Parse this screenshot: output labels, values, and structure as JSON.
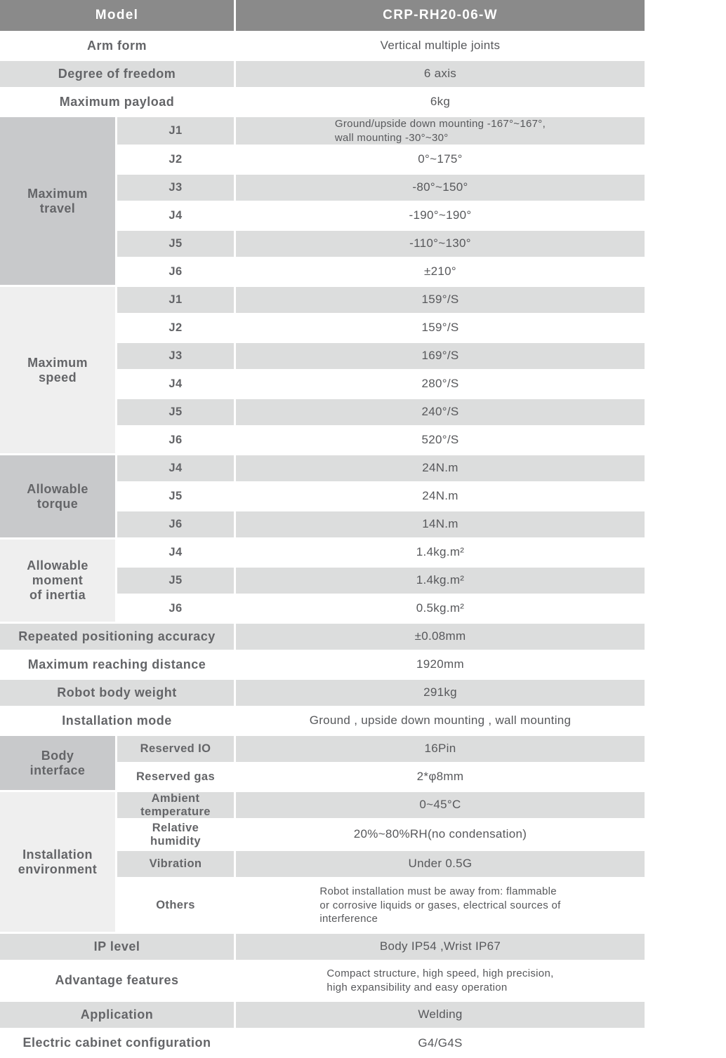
{
  "colors": {
    "header-bg": "#8a8a8a",
    "row-shaded": "#dcdddd",
    "group-dark": "#c8c9cb",
    "group-light": "#efefef",
    "text-label": "#646568",
    "text-value": "#57585b",
    "header-text": "#ffffff"
  },
  "table": {
    "header": {
      "label": "Model",
      "value": "CRP-RH20-06-W"
    },
    "top_rows": [
      {
        "label": "Arm form",
        "value": "Vertical multiple joints"
      },
      {
        "label": "Degree of freedom",
        "value": "6 axis"
      },
      {
        "label": "Maximum payload",
        "value": "6kg"
      }
    ],
    "groups": [
      {
        "title": "Maximum\ntravel",
        "rows": [
          {
            "label": "J1",
            "value": "Ground/upside down mounting -167°~167°,\nwall mounting -30°~30°"
          },
          {
            "label": "J2",
            "value": "0°~175°"
          },
          {
            "label": "J3",
            "value": "-80°~150°"
          },
          {
            "label": "J4",
            "value": "-190°~190°"
          },
          {
            "label": "J5",
            "value": "-110°~130°"
          },
          {
            "label": "J6",
            "value": "±210°"
          }
        ]
      },
      {
        "title": "Maximum\nspeed",
        "rows": [
          {
            "label": "J1",
            "value": "159°/S"
          },
          {
            "label": "J2",
            "value": "159°/S"
          },
          {
            "label": "J3",
            "value": "169°/S"
          },
          {
            "label": "J4",
            "value": "280°/S"
          },
          {
            "label": "J5",
            "value": "240°/S"
          },
          {
            "label": "J6",
            "value": "520°/S"
          }
        ]
      },
      {
        "title": "Allowable\ntorque",
        "rows": [
          {
            "label": "J4",
            "value": "24N.m"
          },
          {
            "label": "J5",
            "value": "24N.m"
          },
          {
            "label": "J6",
            "value": "14N.m"
          }
        ]
      },
      {
        "title": "Allowable\nmoment\nof inertia",
        "rows": [
          {
            "label": "J4",
            "value": "1.4kg.m²"
          },
          {
            "label": "J5",
            "value": "1.4kg.m²"
          },
          {
            "label": "J6",
            "value": "0.5kg.m²"
          }
        ]
      }
    ],
    "mid_rows": [
      {
        "label": "Repeated positioning accuracy",
        "value": "±0.08mm"
      },
      {
        "label": "Maximum reaching distance",
        "value": "1920mm"
      },
      {
        "label": "Robot body weight",
        "value": "291kg"
      },
      {
        "label": "Installation mode",
        "value": "Ground ,  upside down mounting ,  wall mounting"
      }
    ],
    "groups2": [
      {
        "title": "Body\ninterface",
        "rows": [
          {
            "label": "Reserved IO",
            "value": "16Pin"
          },
          {
            "label": "Reserved gas",
            "value": "2*φ8mm"
          }
        ]
      },
      {
        "title": "Installation\nenvironment",
        "rows": [
          {
            "label": "Ambient\ntemperature",
            "value": "0~45°C"
          },
          {
            "label": "Relative\nhumidity",
            "value": "20%~80%RH(no condensation)"
          },
          {
            "label": "Vibration",
            "value": "Under 0.5G"
          },
          {
            "label": "Others",
            "value": "Robot installation must be away from: flammable\nor corrosive liquids or gases, electrical sources of\ninterference"
          }
        ]
      }
    ],
    "bottom_rows": [
      {
        "label": "IP level",
        "value": "Body IP54 ,Wrist IP67"
      },
      {
        "label": "Advantage features",
        "value": "Compact structure, high speed, high precision,\nhigh expansibility and easy operation"
      },
      {
        "label": "Application",
        "value": "Welding"
      },
      {
        "label": "Electric cabinet configuration",
        "value": "G4/G4S"
      }
    ]
  }
}
